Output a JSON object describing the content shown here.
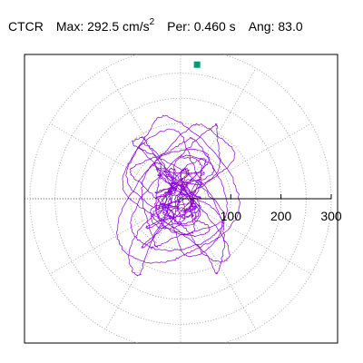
{
  "header": {
    "station": "CTCR",
    "max_label": "Max:",
    "max_value": "292.5 cm/s",
    "max_exp": "2",
    "per_label": "Per:",
    "per_value": "0.460 s",
    "ang_label": "Ang:",
    "ang_value": "83.0"
  },
  "chart_data": {
    "type": "scatter",
    "description_free": true,
    "title": "CTCR  Max: 292.5 cm/s2  Per: 0.460 s  Ang: 83.0",
    "radial_max": 300,
    "r_ticks": [
      100,
      200,
      300
    ],
    "r_tick_labels": [
      "100",
      "200",
      "300"
    ],
    "rings": [
      50,
      100,
      150,
      200,
      250,
      300
    ],
    "spokes_deg": [
      0,
      30,
      60,
      90,
      120,
      150,
      180,
      210,
      240,
      270,
      300,
      330
    ],
    "grid": true,
    "peak": {
      "value": 292.5,
      "angle_deg": 83.0
    },
    "colors": {
      "trace": "#8B00D6",
      "marker": "#009B72",
      "grid": "#999999"
    }
  }
}
